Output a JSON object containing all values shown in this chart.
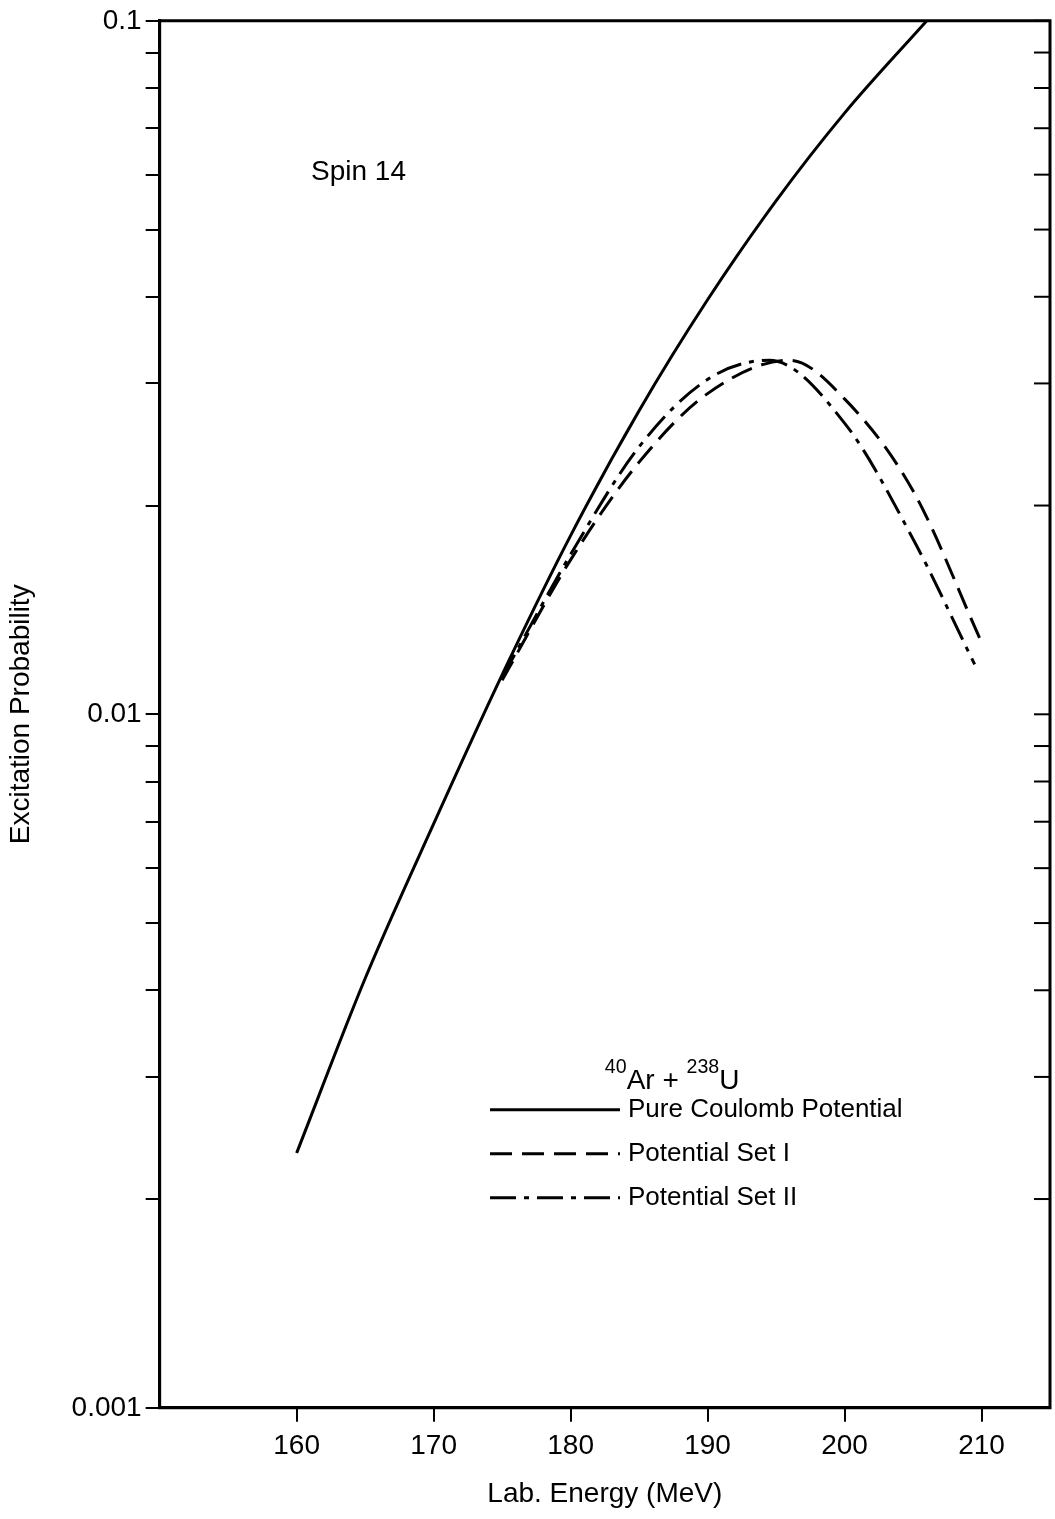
{
  "chart_data": {
    "type": "line",
    "xlabel": "Lab. Energy (MeV)",
    "ylabel": "Excitation Probability",
    "log": "y",
    "xlim": [
      150,
      215
    ],
    "xticks": [
      160,
      170,
      180,
      190,
      200,
      210
    ],
    "ylim": [
      0.001,
      0.1
    ],
    "yticks": [
      0.001,
      {
        "value": 0.002,
        "label": null
      },
      {
        "value": 0.003,
        "label": null
      },
      {
        "value": 0.004,
        "label": null
      },
      {
        "value": 0.005,
        "label": null
      },
      {
        "value": 0.006,
        "label": null
      },
      {
        "value": 0.007,
        "label": null
      },
      {
        "value": 0.008,
        "label": null
      },
      {
        "value": 0.009,
        "label": null
      },
      0.01,
      {
        "value": 0.02,
        "label": null
      },
      {
        "value": 0.03,
        "label": null
      },
      {
        "value": 0.04,
        "label": null
      },
      {
        "value": 0.05,
        "label": null
      },
      {
        "value": 0.06,
        "label": null
      },
      {
        "value": 0.07,
        "label": null
      },
      {
        "value": 0.08,
        "label": null
      },
      {
        "value": 0.09,
        "label": null
      },
      0.1
    ],
    "grid": false,
    "legend": "bottom right",
    "marker": "none",
    "annotations": [
      "Spin 14",
      "$^{40}$Ar + $^{238}$U"
    ],
    "series": [
      {
        "name": "Pure Coulomb Potential",
        "color": "#000000",
        "line_style": "solid",
        "x": [
          160,
          165,
          170,
          175,
          180,
          185,
          190,
          195,
          200,
          206
        ],
        "values": [
          0.00233,
          0.00416,
          0.00695,
          0.0114,
          0.0181,
          0.0274,
          0.0396,
          0.055,
          0.0736,
          0.1
        ]
      },
      {
        "name": "Potential Set I",
        "color": "#000000",
        "line_style": "dashed",
        "x": [
          175,
          180,
          185,
          190,
          196,
          200,
          205,
          210
        ],
        "values": [
          0.0112,
          0.0167,
          0.0231,
          0.029,
          0.0324,
          0.0285,
          0.021,
          0.0127
        ]
      },
      {
        "name": "Potential Set II",
        "color": "#000000",
        "line_style": "dashdot",
        "x": [
          175,
          180,
          185,
          190,
          194.5,
          200,
          205,
          209.5
        ],
        "values": [
          0.0113,
          0.017,
          0.0243,
          0.0304,
          0.0324,
          0.0263,
          0.0179,
          0.0118
        ]
      }
    ]
  }
}
